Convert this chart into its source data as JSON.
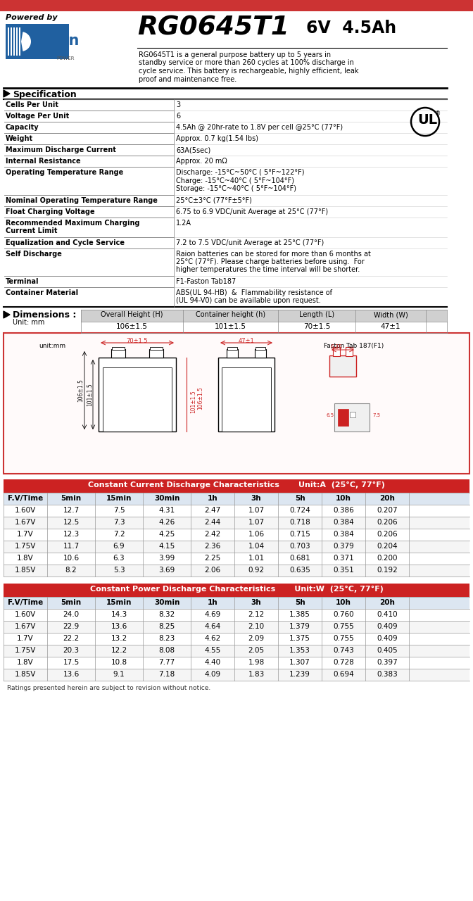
{
  "title_model": "RG0645T1",
  "title_spec": "6V  4.5Ah",
  "powered_by": "Powered by",
  "description": "RG0645T1 is a general purpose battery up to 5 years in\nstandby service or more than 260 cycles at 100% discharge in\ncycle service. This battery is rechargeable, highly efficient, leak\nproof and maintenance free.",
  "section_spec": "Specification",
  "spec_rows": [
    [
      "Cells Per Unit",
      "3"
    ],
    [
      "Voltage Per Unit",
      "6"
    ],
    [
      "Capacity",
      "4.5Ah @ 20hr-rate to 1.8V per cell @25°C (77°F)"
    ],
    [
      "Weight",
      "Approx. 0.7 kg(1.54 lbs)"
    ],
    [
      "Maximum Discharge Current",
      "63A(5sec)"
    ],
    [
      "Internal Resistance",
      "Approx. 20 mΩ"
    ],
    [
      "Operating Temperature Range",
      "Discharge: -15°C~50°C ( 5°F~122°F)\nCharge: -15°C~40°C ( 5°F~104°F)\nStorage: -15°C~40°C ( 5°F~104°F)"
    ],
    [
      "Nominal Operating Temperature Range",
      "25°C±3°C (77°F±5°F)"
    ],
    [
      "Float Charging Voltage",
      "6.75 to 6.9 VDC/unit Average at 25°C (77°F)"
    ],
    [
      "Recommended Maximum Charging\nCurrent Limit",
      "1.2A"
    ],
    [
      "Equalization and Cycle Service",
      "7.2 to 7.5 VDC/unit Average at 25°C (77°F)"
    ],
    [
      "Self Discharge",
      "Raion batteries can be stored for more than 6 months at\n25°C (77°F). Please charge batteries before using.  For\nhigher temperatures the time interval will be shorter."
    ],
    [
      "Terminal",
      "F1-Faston Tab187"
    ],
    [
      "Container Material",
      "ABS(UL 94-HB)  &  Flammability resistance of\n(UL 94-V0) can be available upon request."
    ]
  ],
  "section_dim": "Dimensions :",
  "dim_unit": "Unit: mm",
  "dim_headers": [
    "Overall Height (H)",
    "Container height (h)",
    "Length (L)",
    "Width (W)"
  ],
  "dim_values": [
    "106±1.5",
    "101±1.5",
    "70±1.5",
    "47±1"
  ],
  "cc_title": "Constant Current Discharge Characteristics",
  "cc_unit": "Unit:A  (25°C, 77°F)",
  "cc_headers": [
    "F.V/Time",
    "5min",
    "15min",
    "30min",
    "1h",
    "3h",
    "5h",
    "10h",
    "20h"
  ],
  "cc_data": [
    [
      "1.60V",
      "12.7",
      "7.5",
      "4.31",
      "2.47",
      "1.07",
      "0.724",
      "0.386",
      "0.207"
    ],
    [
      "1.67V",
      "12.5",
      "7.3",
      "4.26",
      "2.44",
      "1.07",
      "0.718",
      "0.384",
      "0.206"
    ],
    [
      "1.7V",
      "12.3",
      "7.2",
      "4.25",
      "2.42",
      "1.06",
      "0.715",
      "0.384",
      "0.206"
    ],
    [
      "1.75V",
      "11.7",
      "6.9",
      "4.15",
      "2.36",
      "1.04",
      "0.703",
      "0.379",
      "0.204"
    ],
    [
      "1.8V",
      "10.6",
      "6.3",
      "3.99",
      "2.25",
      "1.01",
      "0.681",
      "0.371",
      "0.200"
    ],
    [
      "1.85V",
      "8.2",
      "5.3",
      "3.69",
      "2.06",
      "0.92",
      "0.635",
      "0.351",
      "0.192"
    ]
  ],
  "cp_title": "Constant Power Discharge Characteristics",
  "cp_unit": "Unit:W  (25°C, 77°F)",
  "cp_headers": [
    "F.V/Time",
    "5min",
    "15min",
    "30min",
    "1h",
    "3h",
    "5h",
    "10h",
    "20h"
  ],
  "cp_data": [
    [
      "1.60V",
      "24.0",
      "14.3",
      "8.32",
      "4.69",
      "2.12",
      "1.385",
      "0.760",
      "0.410"
    ],
    [
      "1.67V",
      "22.9",
      "13.6",
      "8.25",
      "4.64",
      "2.10",
      "1.379",
      "0.755",
      "0.409"
    ],
    [
      "1.7V",
      "22.2",
      "13.2",
      "8.23",
      "4.62",
      "2.09",
      "1.375",
      "0.755",
      "0.409"
    ],
    [
      "1.75V",
      "20.3",
      "12.2",
      "8.08",
      "4.55",
      "2.05",
      "1.353",
      "0.743",
      "0.405"
    ],
    [
      "1.8V",
      "17.5",
      "10.8",
      "7.77",
      "4.40",
      "1.98",
      "1.307",
      "0.728",
      "0.397"
    ],
    [
      "1.85V",
      "13.6",
      "9.1",
      "7.18",
      "4.09",
      "1.83",
      "1.239",
      "0.694",
      "0.383"
    ]
  ],
  "footer": "Ratings presented herein are subject to revision without notice.",
  "top_bar_color": "#cc3333",
  "table_header_bg": "#cc2222",
  "table_col_header_bg": "#dce6f1",
  "dim_header_bg": "#d0d0d0",
  "white": "#ffffff",
  "light_gray": "#f0f0f0",
  "mid_gray": "#aaaaaa",
  "black": "#000000",
  "raion_blue": "#2060a0",
  "raion_dark": "#1a3060"
}
